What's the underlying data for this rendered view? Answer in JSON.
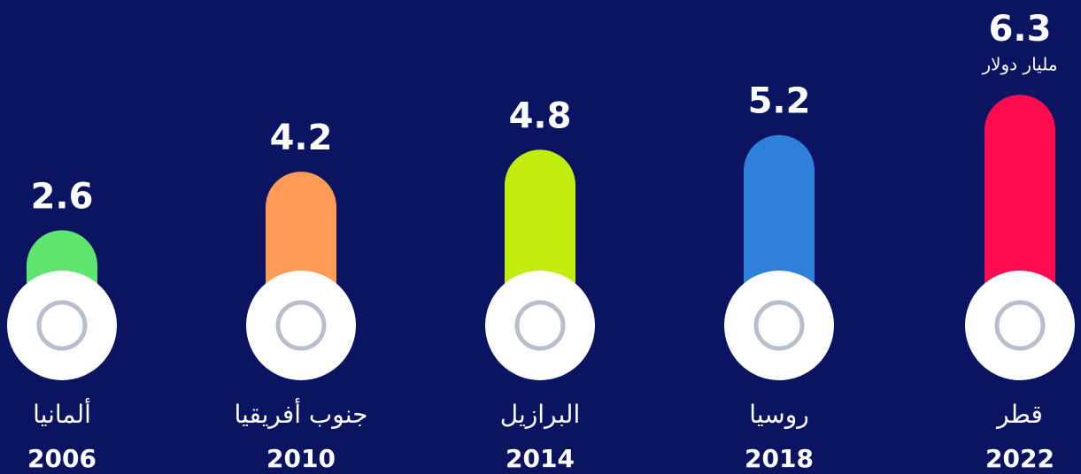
{
  "chart_data": {
    "type": "bar",
    "categories": [
      "ألمانيا",
      "جنوب أفريقيا",
      "البرازيل",
      "روسيا",
      "قطر"
    ],
    "years": [
      2006,
      2010,
      2014,
      2018,
      2022
    ],
    "values": [
      2.6,
      4.2,
      4.8,
      5.2,
      6.3
    ],
    "colors": [
      "#5fe46e",
      "#ff9a57",
      "#c2ec0e",
      "#2f80dd",
      "#ff0b4f"
    ],
    "unit": "مليار دولار"
  }
}
